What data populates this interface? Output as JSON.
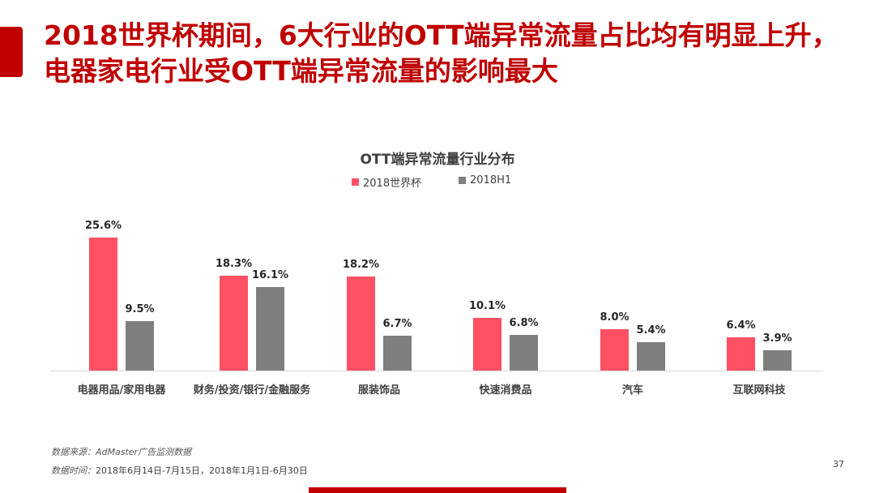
{
  "slide": {
    "title": "2018世界杯期间，6大行业的OTT端异常流量占比均有明显上升，电器家电行业受OTT端异常流量的影响最大",
    "title_color": "#c00000",
    "page_number": "37"
  },
  "legend": {
    "items": [
      {
        "label": "2018世界杯",
        "color": "#ff5064"
      },
      {
        "label": "2018H1",
        "color": "#7f7f7f"
      }
    ]
  },
  "categories": [
    {
      "label": "电器用品/家用电器",
      "a": "25.6%",
      "b": "9.5%"
    },
    {
      "label": "财务/投资/银行/金融服务",
      "a": "18.3%",
      "b": "16.1%"
    },
    {
      "label": "服装饰品",
      "a": "18.2%",
      "b": "6.7%"
    },
    {
      "label": "快速消费品",
      "a": "10.1%",
      "b": "6.8%"
    },
    {
      "label": "汽车",
      "a": "8.0%",
      "b": "5.4%"
    },
    {
      "label": "互联网科技",
      "a": "6.4%",
      "b": "3.9%"
    }
  ],
  "footer": {
    "source_key": "数据来源：",
    "source_value": "AdMaster广告监测数据",
    "time_key": "数据时间：",
    "time_value": "2018年6月14日-7月15日，2018年1月1日-6月30日"
  },
  "chart_data": {
    "type": "bar",
    "title": "OTT端异常流量行业分布",
    "categories": [
      "电器用品/家用电器",
      "财务/投资/银行/金融服务",
      "服装饰品",
      "快速消费品",
      "汽车",
      "互联网科技"
    ],
    "series": [
      {
        "name": "2018世界杯",
        "color": "#ff5064",
        "values": [
          25.6,
          18.3,
          18.2,
          10.1,
          8.0,
          6.4
        ]
      },
      {
        "name": "2018H1",
        "color": "#7f7f7f",
        "values": [
          9.5,
          16.1,
          6.7,
          6.8,
          5.4,
          3.9
        ]
      }
    ],
    "value_format": "percent",
    "xlabel": "",
    "ylabel": "",
    "ylim": [
      0,
      30
    ],
    "grid": false,
    "legend_position": "top",
    "data_labels": true
  }
}
